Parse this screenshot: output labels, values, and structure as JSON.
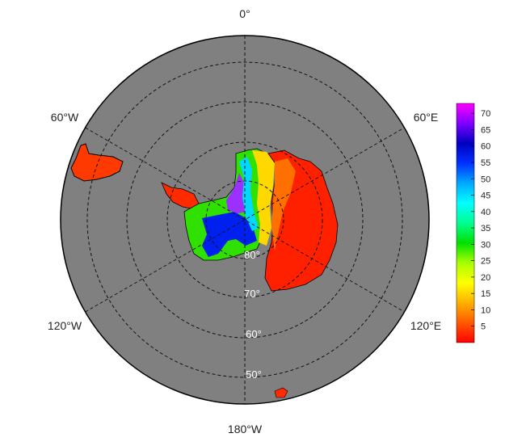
{
  "map": {
    "longitude_labels": [
      {
        "key": "0",
        "text": "0°"
      },
      {
        "key": "60e",
        "text": "60°E"
      },
      {
        "key": "120e",
        "text": "120°E"
      },
      {
        "key": "180",
        "text": "180°W"
      },
      {
        "key": "120w",
        "text": "120°W"
      },
      {
        "key": "60w",
        "text": "60°W"
      }
    ],
    "latitude_labels": [
      {
        "key": "80",
        "text": "80°"
      },
      {
        "key": "70",
        "text": "70°"
      },
      {
        "key": "60",
        "text": "60°"
      },
      {
        "key": "50",
        "text": "50°"
      }
    ],
    "colors": {
      "ocean": "#808080",
      "graticule": "#111111",
      "coast": "#000000"
    }
  },
  "colorbar": {
    "ticks": [
      "5",
      "10",
      "15",
      "20",
      "25",
      "30",
      "35",
      "40",
      "45",
      "50",
      "55",
      "60",
      "65",
      "70"
    ],
    "range": [
      0,
      73
    ],
    "stops": [
      "#ff0000",
      "#ff5a00",
      "#ffb000",
      "#ffff00",
      "#a8ff00",
      "#00e000",
      "#00ff90",
      "#00ffff",
      "#00a8ff",
      "#0030ff",
      "#0000c0",
      "#8000ff",
      "#ff00ff"
    ]
  }
}
